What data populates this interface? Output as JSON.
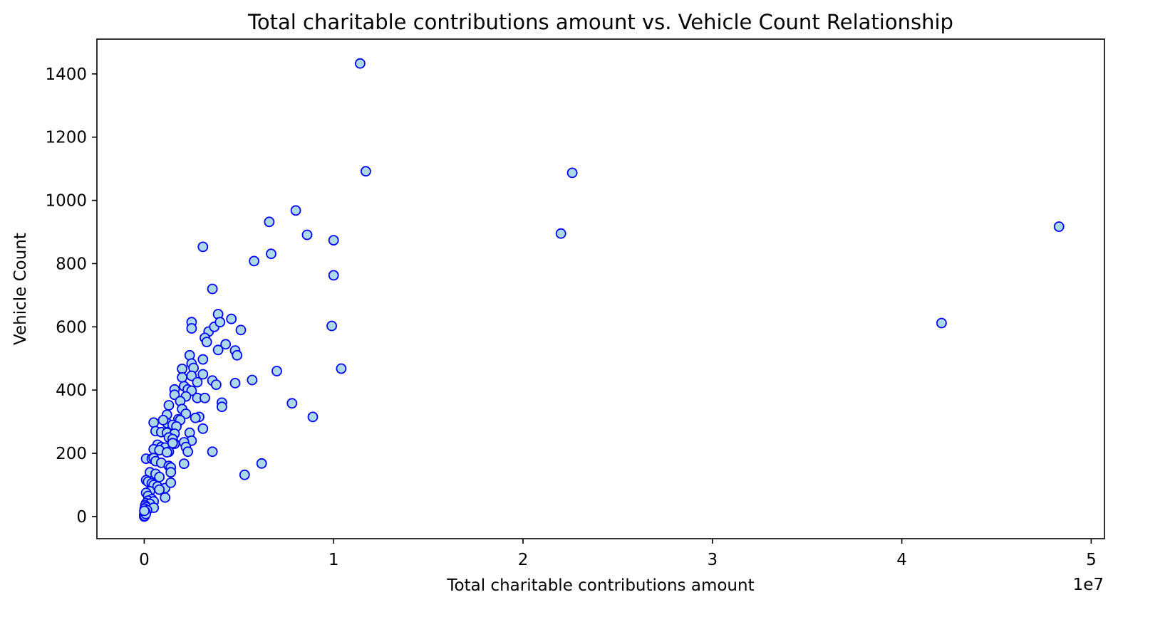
{
  "chart_data": {
    "type": "scatter",
    "title": "Total charitable contributions amount vs. Vehicle Count Relationship",
    "xlabel": "Total charitable contributions amount",
    "ylabel": "Vehicle Count",
    "x_offset_label": "1e7",
    "xlim": [
      -2500000,
      50700000
    ],
    "ylim": [
      -70,
      1510
    ],
    "x_ticks": [
      0,
      10000000,
      20000000,
      30000000,
      40000000,
      50000000
    ],
    "x_tick_labels": [
      "0",
      "1",
      "2",
      "3",
      "4",
      "5"
    ],
    "y_ticks": [
      0,
      200,
      400,
      600,
      800,
      1000,
      1200,
      1400
    ],
    "y_tick_labels": [
      "0",
      "200",
      "400",
      "600",
      "800",
      "1000",
      "1200",
      "1400"
    ],
    "grid": false,
    "marker_face_color": "#add8e6",
    "marker_edge_color": "#0000ff",
    "points": [
      [
        11400000,
        1433
      ],
      [
        11700000,
        1092
      ],
      [
        22600000,
        1087
      ],
      [
        48300000,
        917
      ],
      [
        22000000,
        895
      ],
      [
        42100000,
        612
      ],
      [
        8000000,
        968
      ],
      [
        6600000,
        932
      ],
      [
        8600000,
        891
      ],
      [
        10000000,
        874
      ],
      [
        3100000,
        853
      ],
      [
        6700000,
        831
      ],
      [
        5800000,
        808
      ],
      [
        10000000,
        763
      ],
      [
        3600000,
        720
      ],
      [
        3900000,
        640
      ],
      [
        4600000,
        625
      ],
      [
        9900000,
        603
      ],
      [
        2500000,
        615
      ],
      [
        2500000,
        595
      ],
      [
        3400000,
        585
      ],
      [
        5100000,
        590
      ],
      [
        3700000,
        600
      ],
      [
        3200000,
        565
      ],
      [
        3300000,
        552
      ],
      [
        4000000,
        615
      ],
      [
        4300000,
        545
      ],
      [
        3900000,
        527
      ],
      [
        4800000,
        525
      ],
      [
        4900000,
        510
      ],
      [
        2400000,
        510
      ],
      [
        3100000,
        497
      ],
      [
        10400000,
        468
      ],
      [
        7000000,
        460
      ],
      [
        2000000,
        467
      ],
      [
        2500000,
        484
      ],
      [
        2600000,
        470
      ],
      [
        3100000,
        450
      ],
      [
        2000000,
        440
      ],
      [
        2500000,
        445
      ],
      [
        5700000,
        432
      ],
      [
        3600000,
        430
      ],
      [
        4800000,
        422
      ],
      [
        3800000,
        417
      ],
      [
        2800000,
        425
      ],
      [
        2100000,
        412
      ],
      [
        1600000,
        402
      ],
      [
        2300000,
        402
      ],
      [
        2500000,
        398
      ],
      [
        1600000,
        385
      ],
      [
        2200000,
        380
      ],
      [
        2800000,
        375
      ],
      [
        3200000,
        375
      ],
      [
        4100000,
        360
      ],
      [
        4100000,
        347
      ],
      [
        7800000,
        358
      ],
      [
        1900000,
        365
      ],
      [
        1300000,
        352
      ],
      [
        2000000,
        340
      ],
      [
        2200000,
        325
      ],
      [
        1200000,
        322
      ],
      [
        2900000,
        315
      ],
      [
        2700000,
        312
      ],
      [
        1800000,
        308
      ],
      [
        1900000,
        305
      ],
      [
        8900000,
        315
      ],
      [
        500000,
        297
      ],
      [
        1200000,
        296
      ],
      [
        1000000,
        305
      ],
      [
        1500000,
        290
      ],
      [
        1700000,
        285
      ],
      [
        3100000,
        278
      ],
      [
        600000,
        270
      ],
      [
        900000,
        267
      ],
      [
        1200000,
        265
      ],
      [
        1600000,
        262
      ],
      [
        2400000,
        265
      ],
      [
        1300000,
        250
      ],
      [
        1500000,
        245
      ],
      [
        2500000,
        240
      ],
      [
        2100000,
        235
      ],
      [
        1600000,
        230
      ],
      [
        700000,
        227
      ],
      [
        900000,
        220
      ],
      [
        1100000,
        218
      ],
      [
        1500000,
        232
      ],
      [
        2200000,
        220
      ],
      [
        500000,
        213
      ],
      [
        800000,
        210
      ],
      [
        1300000,
        205
      ],
      [
        1200000,
        203
      ],
      [
        2300000,
        205
      ],
      [
        3600000,
        205
      ],
      [
        100000,
        183
      ],
      [
        400000,
        183
      ],
      [
        500000,
        185
      ],
      [
        600000,
        175
      ],
      [
        900000,
        170
      ],
      [
        1300000,
        160
      ],
      [
        1400000,
        155
      ],
      [
        2100000,
        167
      ],
      [
        6200000,
        168
      ],
      [
        5300000,
        132
      ],
      [
        300000,
        140
      ],
      [
        600000,
        135
      ],
      [
        800000,
        125
      ],
      [
        1400000,
        140
      ],
      [
        100000,
        115
      ],
      [
        200000,
        110
      ],
      [
        400000,
        105
      ],
      [
        500000,
        100
      ],
      [
        700000,
        95
      ],
      [
        1100000,
        90
      ],
      [
        1400000,
        107
      ],
      [
        800000,
        85
      ],
      [
        300000,
        80
      ],
      [
        100000,
        75
      ],
      [
        200000,
        65
      ],
      [
        1100000,
        60
      ],
      [
        400000,
        55
      ],
      [
        200000,
        50
      ],
      [
        500000,
        48
      ],
      [
        100000,
        42
      ],
      [
        300000,
        40
      ],
      [
        50000,
        35
      ],
      [
        100000,
        30
      ],
      [
        500000,
        28
      ],
      [
        20000,
        25
      ],
      [
        150000,
        20
      ],
      [
        50000,
        15
      ],
      [
        10000,
        10
      ],
      [
        0,
        5
      ],
      [
        0,
        0
      ],
      [
        30000,
        2
      ],
      [
        80000,
        8
      ],
      [
        5000,
        18
      ]
    ]
  }
}
